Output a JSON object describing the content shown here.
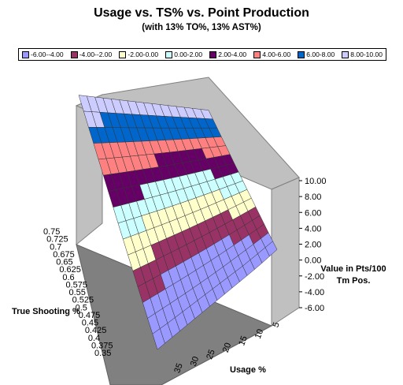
{
  "chart_data": {
    "type": "surface",
    "title": "Usage vs. TS% vs. Point Production",
    "subtitle": "(with 13% TO%, 13% AST%)",
    "xlabel": "Usage %",
    "ylabel": "True Shooting %",
    "zlabel": "Value in Pts/100 Tm Pos.",
    "x_ticks": [
      "5",
      "10",
      "15",
      "20",
      "25",
      "30",
      "35"
    ],
    "y_ticks": [
      "0.35",
      "0.375",
      "0.4",
      "0.425",
      "0.45",
      "0.475",
      "0.5",
      "0.525",
      "0.55",
      "0.575",
      "0.6",
      "0.625",
      "0.65",
      "0.675",
      "0.7",
      "0.725",
      "0.75"
    ],
    "z_ticks": [
      "-6.00",
      "-4.00",
      "-2.00",
      "0.00",
      "2.00",
      "4.00",
      "6.00",
      "8.00",
      "10.00"
    ],
    "zlim": [
      -6,
      10
    ],
    "legend": [
      {
        "label": "-6.00--4.00",
        "color": "#9999ff"
      },
      {
        "label": "-4.00--2.00",
        "color": "#993366"
      },
      {
        "label": "-2.00-0.00",
        "color": "#ffffcc"
      },
      {
        "label": "0.00-2.00",
        "color": "#ccffff"
      },
      {
        "label": "2.00-4.00",
        "color": "#660066"
      },
      {
        "label": "4.00-6.00",
        "color": "#ff8080"
      },
      {
        "label": "6.00-8.00",
        "color": "#0066cc"
      },
      {
        "label": "8.00-10.00",
        "color": "#ccccff"
      }
    ],
    "grid": true,
    "legend_position": "top"
  }
}
